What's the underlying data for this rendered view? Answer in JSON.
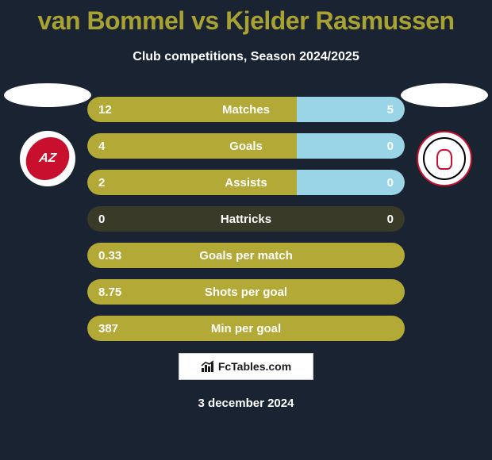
{
  "title": "van Bommel vs Kjelder Rasmussen",
  "subtitle": "Club competitions, Season 2024/2025",
  "date": "3 december 2024",
  "footer_brand": "FcTables.com",
  "colors": {
    "accent": "#b3a936",
    "accent_light": "#99d5e6",
    "bar_bg": "#3a3a28",
    "title": "#a8a232",
    "page_bg": "#1a2332"
  },
  "crest_left": "AZ",
  "crest_right": "AJAX",
  "stats": [
    {
      "label": "Matches",
      "left_val": "12",
      "right_val": "5",
      "left_pct": 66,
      "right_pct": 34,
      "left_color": "#b3a936",
      "right_color": "#99d5e6"
    },
    {
      "label": "Goals",
      "left_val": "4",
      "right_val": "0",
      "left_pct": 66,
      "right_pct": 34,
      "left_color": "#b3a936",
      "right_color": "#99d5e6"
    },
    {
      "label": "Assists",
      "left_val": "2",
      "right_val": "0",
      "left_pct": 66,
      "right_pct": 34,
      "left_color": "#b3a936",
      "right_color": "#99d5e6"
    },
    {
      "label": "Hattricks",
      "left_val": "0",
      "right_val": "0",
      "left_pct": 0,
      "right_pct": 0,
      "left_color": "#b3a936",
      "right_color": "#99d5e6"
    },
    {
      "label": "Goals per match",
      "left_val": "0.33",
      "right_val": "",
      "left_pct": 100,
      "right_pct": 0,
      "left_color": "#b3a936",
      "right_color": "#99d5e6"
    },
    {
      "label": "Shots per goal",
      "left_val": "8.75",
      "right_val": "",
      "left_pct": 100,
      "right_pct": 0,
      "left_color": "#b3a936",
      "right_color": "#99d5e6"
    },
    {
      "label": "Min per goal",
      "left_val": "387",
      "right_val": "",
      "left_pct": 100,
      "right_pct": 0,
      "left_color": "#b3a936",
      "right_color": "#99d5e6"
    }
  ]
}
